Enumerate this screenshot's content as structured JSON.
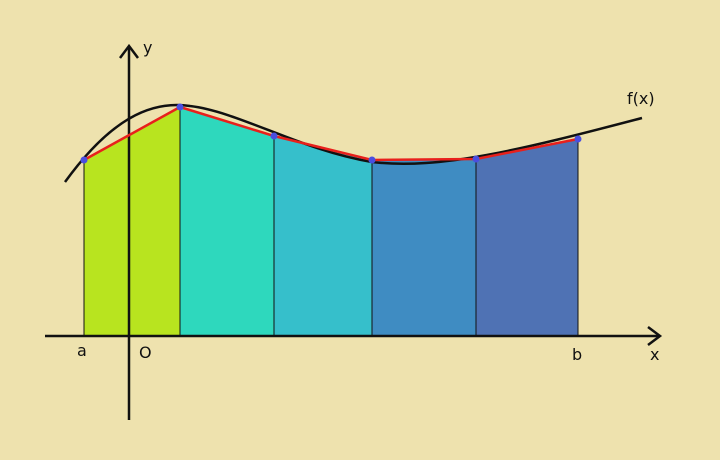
{
  "axes": {
    "y_label": "y",
    "x_label": "x"
  },
  "curve": {
    "label": "f(x)"
  },
  "points": {
    "a": "a",
    "origin": "O",
    "b": "b"
  }
}
